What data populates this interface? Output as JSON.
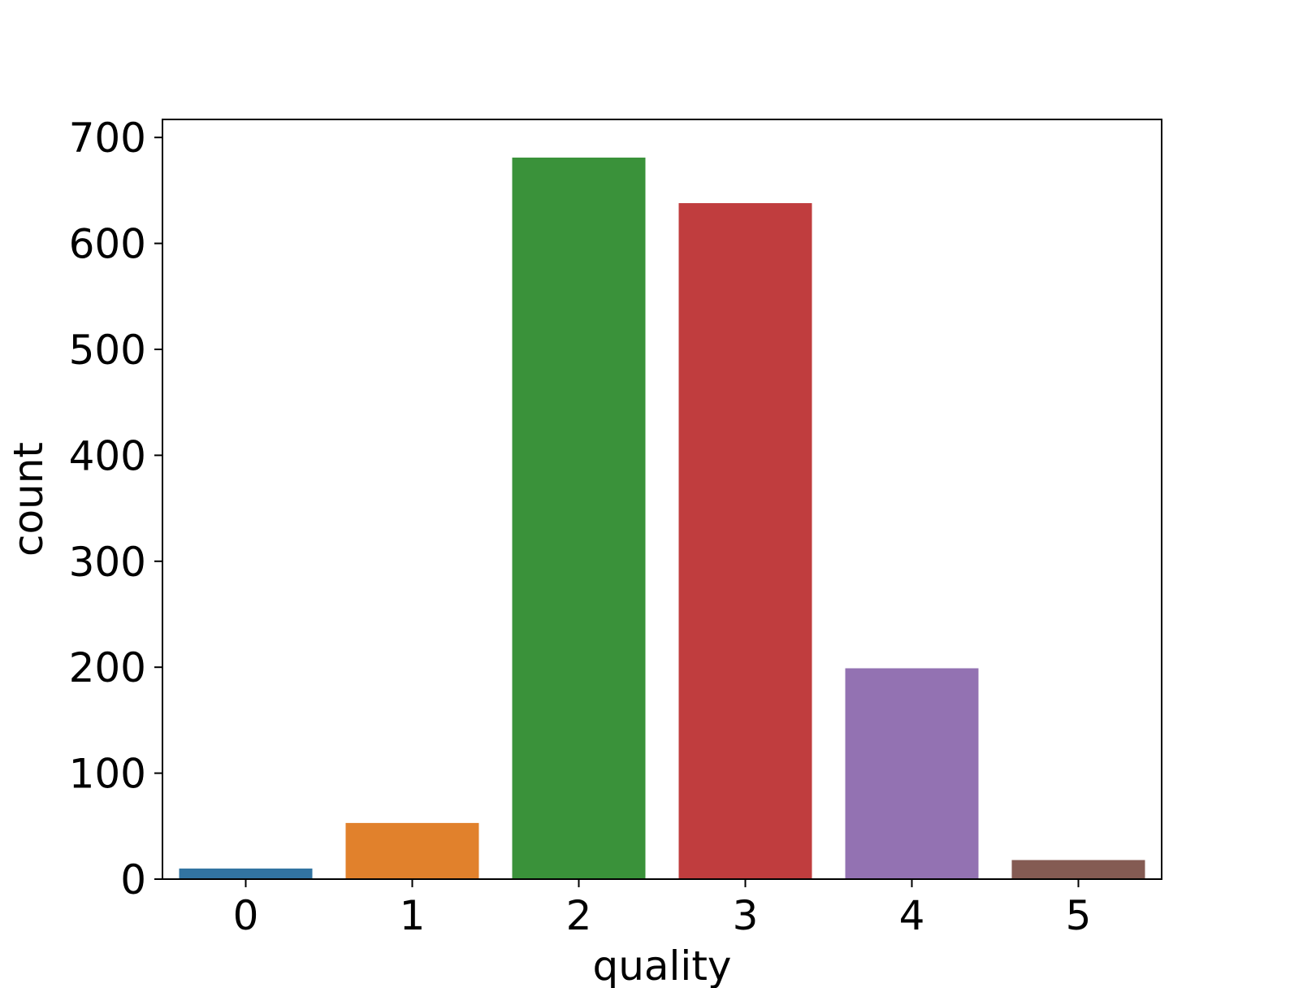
{
  "chart_data": {
    "type": "bar",
    "title": "",
    "xlabel": "quality",
    "ylabel": "count",
    "categories": [
      "0",
      "1",
      "2",
      "3",
      "4",
      "5"
    ],
    "values": [
      10,
      53,
      681,
      638,
      199,
      18
    ],
    "colors": [
      "#3274a1",
      "#e1812c",
      "#3a923a",
      "#c03d3e",
      "#9372b2",
      "#845b53"
    ],
    "ylim": [
      0,
      717
    ],
    "yticks": [
      0,
      100,
      200,
      300,
      400,
      500,
      600,
      700
    ],
    "grid": false,
    "legend": "none"
  }
}
